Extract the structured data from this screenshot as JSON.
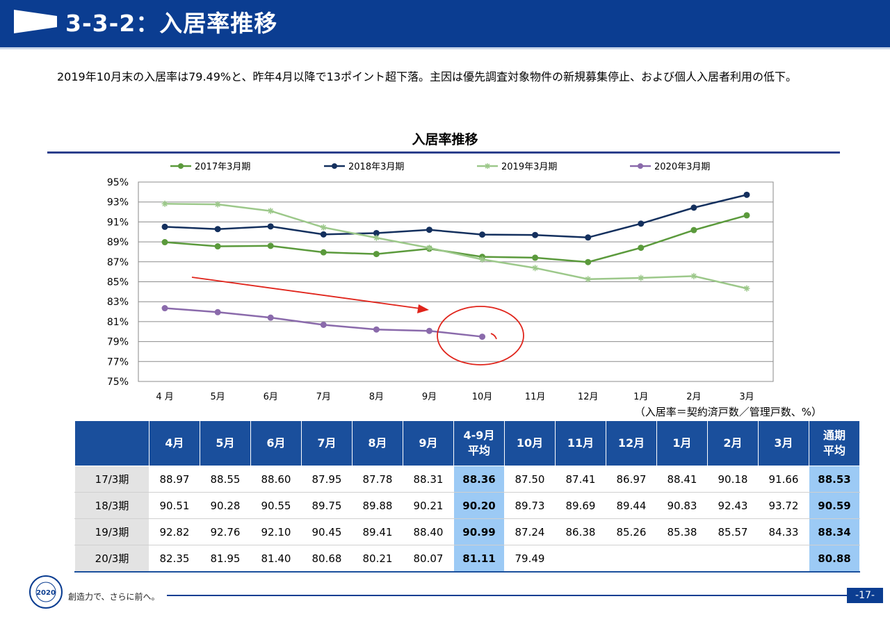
{
  "header": {
    "title": "3-3-2：入居率推移"
  },
  "summary": "2019年10月末の入居率は79.49%と、昨年4月以降で13ポイント超下落。主因は優先調査対象物件の新規募集停止、および個人入居者利用の低下。",
  "chart_data": {
    "type": "line",
    "title": "入居率推移",
    "categories": [
      "4 月",
      "5月",
      "6月",
      "7月",
      "8月",
      "9月",
      "10月",
      "11月",
      "12月",
      "1月",
      "2月",
      "3月"
    ],
    "y_ticks": [
      "95%",
      "93%",
      "91%",
      "89%",
      "87%",
      "85%",
      "83%",
      "81%",
      "79%",
      "77%",
      "75%"
    ],
    "ylim": [
      75,
      95
    ],
    "grid": true,
    "legend_position": "top",
    "series": [
      {
        "name": "2017年3月期",
        "color": "#5b9a3c",
        "marker": "circle",
        "values": [
          88.97,
          88.55,
          88.6,
          87.95,
          87.78,
          88.31,
          87.5,
          87.41,
          86.97,
          88.41,
          90.18,
          91.66
        ]
      },
      {
        "name": "2018年3月期",
        "color": "#14305e",
        "marker": "circle",
        "values": [
          90.51,
          90.28,
          90.55,
          89.75,
          89.88,
          90.21,
          89.73,
          89.69,
          89.44,
          90.83,
          92.43,
          93.72
        ]
      },
      {
        "name": "2019年3月期",
        "color": "#9cc88a",
        "marker": "star",
        "values": [
          92.82,
          92.76,
          92.1,
          90.45,
          89.41,
          88.4,
          87.24,
          86.38,
          85.26,
          85.38,
          85.57,
          84.33
        ]
      },
      {
        "name": "2020年3月期",
        "color": "#8a6aab",
        "marker": "circle",
        "values": [
          82.35,
          81.95,
          81.4,
          80.68,
          80.21,
          80.07,
          79.49,
          null,
          null,
          null,
          null,
          null
        ]
      }
    ]
  },
  "note": "（入居率＝契約済戸数／管理戸数、%）",
  "table": {
    "headers": [
      "",
      "4月",
      "5月",
      "6月",
      "7月",
      "8月",
      "9月",
      "4-9月\n平均",
      "10月",
      "11月",
      "12月",
      "1月",
      "2月",
      "3月",
      "通期\n平均"
    ],
    "rows": [
      {
        "label": "17/3期",
        "cells": [
          "88.97",
          "88.55",
          "88.60",
          "87.95",
          "87.78",
          "88.31",
          "88.36",
          "87.50",
          "87.41",
          "86.97",
          "88.41",
          "90.18",
          "91.66",
          "88.53"
        ]
      },
      {
        "label": "18/3期",
        "cells": [
          "90.51",
          "90.28",
          "90.55",
          "89.75",
          "89.88",
          "90.21",
          "90.20",
          "89.73",
          "89.69",
          "89.44",
          "90.83",
          "92.43",
          "93.72",
          "90.59"
        ]
      },
      {
        "label": "19/3期",
        "cells": [
          "92.82",
          "92.76",
          "92.10",
          "90.45",
          "89.41",
          "88.40",
          "90.99",
          "87.24",
          "86.38",
          "85.26",
          "85.38",
          "85.57",
          "84.33",
          "88.34"
        ]
      },
      {
        "label": "20/3期",
        "cells": [
          "82.35",
          "81.95",
          "81.40",
          "80.68",
          "80.21",
          "80.07",
          "81.11",
          "79.49",
          "",
          "",
          "",
          "",
          "",
          "80.88"
        ]
      }
    ]
  },
  "footer": {
    "logo_text": "CREATIVE 2020 EVOLUTION",
    "slogan": "創造力で、さらに前へ。",
    "page": "-17-"
  }
}
